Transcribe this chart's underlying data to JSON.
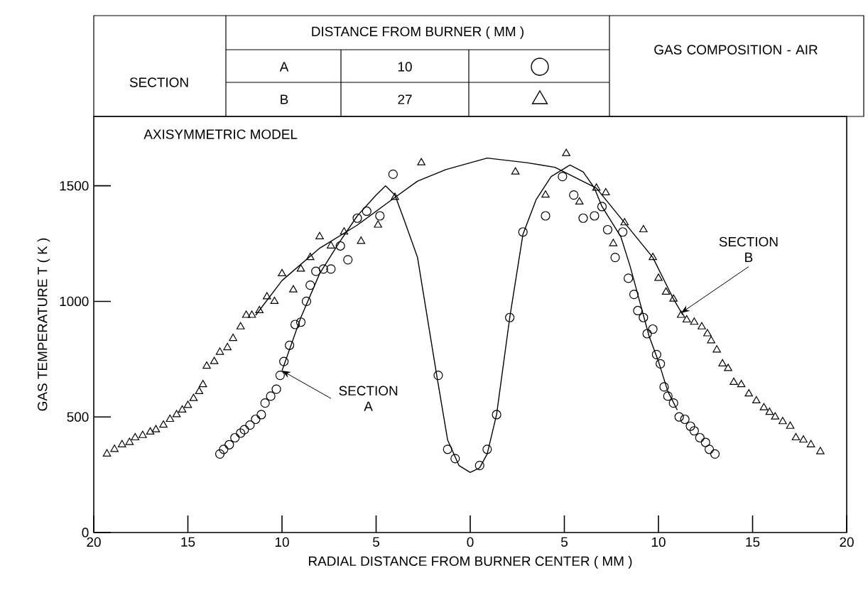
{
  "chart_data": {
    "type": "scatter",
    "xlabel": "RADIAL DISTANCE FROM BURNER CENTER ( MM )",
    "ylabel": "GAS TEMPERATURE T ( K )",
    "legend_title": "DISTANCE FROM BURNER ( MM )",
    "xlim": [
      -20,
      20
    ],
    "ylim": [
      0,
      1800
    ],
    "xticks": [
      {
        "value": -20,
        "label": "20"
      },
      {
        "value": -15,
        "label": "15"
      },
      {
        "value": -10,
        "label": "10"
      },
      {
        "value": -5,
        "label": "5"
      },
      0,
      5,
      10,
      15,
      20
    ],
    "yticks": [
      0,
      500,
      1000,
      1500
    ],
    "grid": false,
    "annotations": [
      "AXISYMMETRIC MODEL",
      {
        "text": "SECTION A",
        "x": -10,
        "y": 700
      },
      {
        "text": "SECTION B",
        "x": 11.2,
        "y": 950
      },
      "SECTION",
      "A",
      "10",
      "B",
      "27",
      "GAS COMPOSITION - AIR"
    ],
    "series": [
      {
        "marker": "circle",
        "color": "#000000",
        "x": [
          -13.3,
          -13.1,
          -12.8,
          -12.5,
          -12.2,
          -12.0,
          -11.7,
          -11.4,
          -11.1,
          -10.9,
          -10.6,
          -10.3,
          -10.1,
          -9.9,
          -9.6,
          -9.3,
          -9.0,
          -8.7,
          -8.5,
          -8.2,
          -7.8,
          -7.4,
          -6.9,
          -6.5,
          -6.0,
          -5.5,
          -4.8,
          -4.1,
          -1.7,
          -1.2,
          -0.8,
          0.5,
          0.9,
          1.4,
          2.1,
          2.8,
          4.0,
          4.9,
          5.5,
          6.0,
          6.6,
          7.0,
          7.3,
          8.1,
          7.7,
          8.4,
          8.7,
          8.9,
          9.2,
          9.4,
          9.7,
          9.9,
          10.1,
          10.3,
          10.5,
          10.8,
          11.1,
          11.4,
          11.7,
          11.9,
          12.2,
          12.5,
          12.7,
          13.0
        ],
        "values": [
          340,
          360,
          380,
          410,
          430,
          445,
          465,
          490,
          510,
          560,
          590,
          620,
          680,
          740,
          810,
          900,
          910,
          1000,
          1070,
          1130,
          1140,
          1140,
          1240,
          1180,
          1360,
          1390,
          1370,
          1550,
          680,
          360,
          320,
          290,
          360,
          510,
          930,
          1300,
          1370,
          1540,
          1460,
          1360,
          1370,
          1410,
          1310,
          1300,
          1190,
          1100,
          1030,
          960,
          930,
          860,
          880,
          770,
          730,
          630,
          590,
          560,
          500,
          490,
          460,
          440,
          410,
          390,
          360,
          340
        ]
      },
      {
        "marker": "triangle",
        "color": "#000000",
        "x": [
          -19.3,
          -18.9,
          -18.5,
          -18.1,
          -17.8,
          -17.4,
          -17.0,
          -16.7,
          -16.3,
          -15.95,
          -15.6,
          -15.3,
          -15.0,
          -14.7,
          -14.4,
          -14.2,
          -14.0,
          -13.6,
          -13.3,
          -12.9,
          -12.6,
          -12.2,
          -11.9,
          -11.6,
          -11.2,
          -10.8,
          -10.4,
          -10.0,
          -9.4,
          -9.0,
          -8.5,
          -8.0,
          -7.4,
          -6.7,
          -5.8,
          -4.9,
          -4.0,
          -2.6,
          2.4,
          5.1,
          4.0,
          5.8,
          6.7,
          7.2,
          8.2,
          9.2,
          7.6,
          9.7,
          10.0,
          10.4,
          10.8,
          11.2,
          11.5,
          11.9,
          12.3,
          12.6,
          12.8,
          13.1,
          13.4,
          13.7,
          14.0,
          14.4,
          14.8,
          15.2,
          15.6,
          15.9,
          16.2,
          16.6,
          17.0,
          17.3,
          17.7,
          18.1,
          18.6
        ],
        "values": [
          340,
          360,
          380,
          390,
          410,
          420,
          435,
          445,
          465,
          490,
          510,
          530,
          550,
          580,
          610,
          640,
          720,
          740,
          780,
          800,
          840,
          890,
          940,
          940,
          960,
          1020,
          1000,
          1120,
          1050,
          1140,
          1190,
          1280,
          1240,
          1300,
          1260,
          1330,
          1450,
          1600,
          1560,
          1640,
          1460,
          1430,
          1490,
          1470,
          1340,
          1310,
          1250,
          1190,
          1100,
          1040,
          1010,
          940,
          920,
          910,
          890,
          860,
          830,
          790,
          730,
          710,
          650,
          640,
          600,
          570,
          540,
          520,
          500,
          480,
          460,
          410,
          400,
          380,
          350
        ]
      },
      {
        "type": "line",
        "marker": "none",
        "color": "#000000",
        "x": [
          -10,
          -9,
          -8,
          -7,
          -6,
          -5,
          -4.5,
          -4,
          -3.5,
          -2.8,
          -2.3,
          -1.8,
          -1.2,
          -0.6,
          0,
          0.5,
          0.9,
          1.4,
          2.1,
          2.8,
          3.5,
          4.3,
          5.3,
          6,
          6.6,
          7,
          8,
          8.5,
          9,
          9.5,
          10,
          10.5,
          11
        ],
        "values": [
          700,
          930,
          1120,
          1250,
          1370,
          1460,
          1500,
          1460,
          1350,
          1190,
          940,
          690,
          400,
          290,
          260,
          280,
          340,
          510,
          930,
          1290,
          1440,
          1540,
          1590,
          1560,
          1490,
          1410,
          1280,
          1150,
          1000,
          850,
          740,
          610,
          530
        ]
      },
      {
        "type": "line",
        "marker": "none",
        "color": "#000000",
        "x": [
          -11.4,
          -10,
          -8,
          -6,
          -4,
          -2.8,
          -1.3,
          0.9,
          3,
          4.5,
          6.7,
          8.2,
          9.7,
          10.8,
          11.3
        ],
        "values": [
          940,
          1090,
          1230,
          1330,
          1450,
          1520,
          1570,
          1620,
          1600,
          1580,
          1490,
          1340,
          1190,
          1010,
          940
        ]
      }
    ]
  }
}
